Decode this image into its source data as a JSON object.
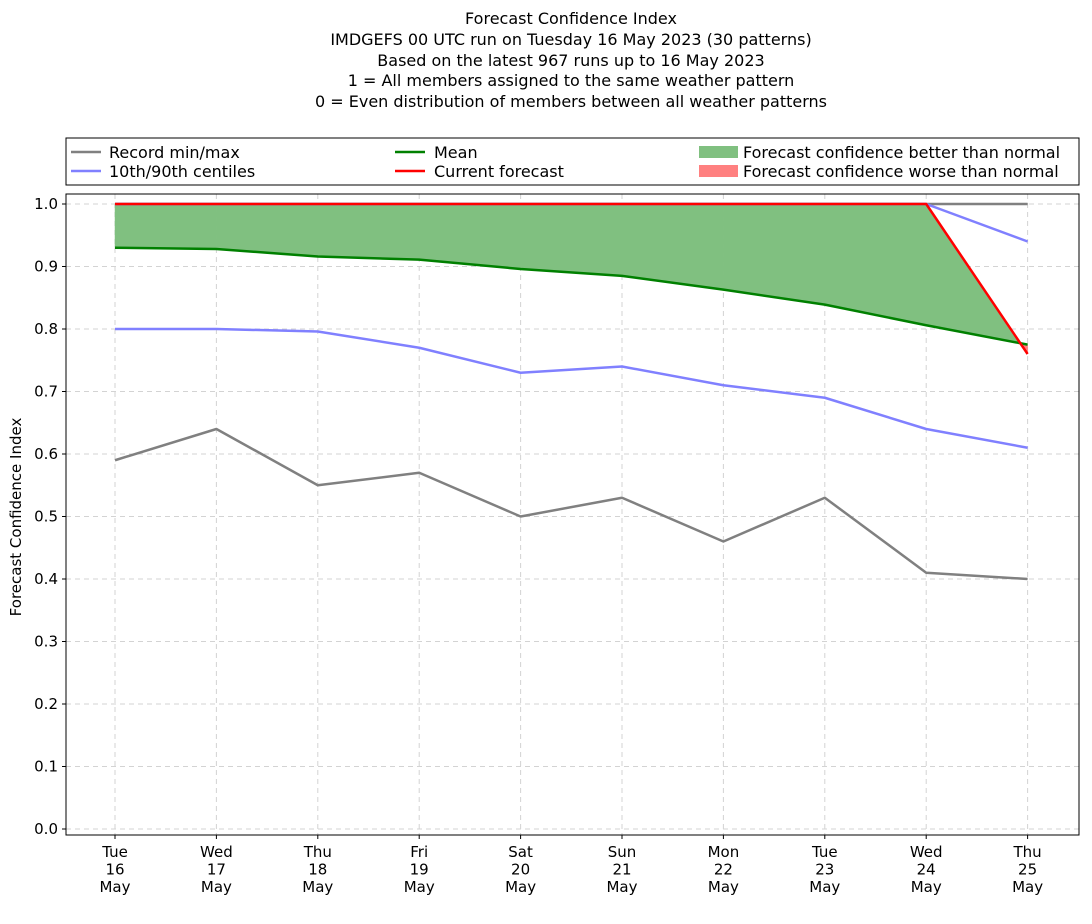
{
  "title_lines": [
    "Forecast Confidence Index",
    "IMDGEFS 00 UTC run on Tuesday 16 May 2023 (30 patterns)",
    "Based on the latest 967 runs up to 16 May 2023",
    "1 = All members assigned to the same weather pattern",
    "0 = Even distribution of members between all weather patterns"
  ],
  "legend": {
    "record": "Record min/max",
    "centiles": "10th/90th centiles",
    "mean": "Mean",
    "current": "Current forecast",
    "better": "Forecast confidence better than normal",
    "worse": "Forecast confidence worse than normal"
  },
  "colors": {
    "record": "#808080",
    "centiles": "#8080ff",
    "mean": "#008000",
    "current": "#ff0000",
    "better_fill": "#80c080",
    "worse_fill": "#ff8080"
  },
  "chart_data": {
    "type": "line",
    "ylabel": "Forecast Confidence Index",
    "ylim": [
      0,
      1
    ],
    "yticks": [
      "0.0",
      "0.1",
      "0.2",
      "0.3",
      "0.4",
      "0.5",
      "0.6",
      "0.7",
      "0.8",
      "0.9",
      "1.0"
    ],
    "grid": true,
    "legend_position": "top",
    "categories": [
      [
        "Tue",
        "16",
        "May"
      ],
      [
        "Wed",
        "17",
        "May"
      ],
      [
        "Thu",
        "18",
        "May"
      ],
      [
        "Fri",
        "19",
        "May"
      ],
      [
        "Sat",
        "20",
        "May"
      ],
      [
        "Sun",
        "21",
        "May"
      ],
      [
        "Mon",
        "22",
        "May"
      ],
      [
        "Tue",
        "23",
        "May"
      ],
      [
        "Wed",
        "24",
        "May"
      ],
      [
        "Thu",
        "25",
        "May"
      ]
    ],
    "series": [
      {
        "name": "Record min",
        "key": "record",
        "values": [
          0.59,
          0.64,
          0.55,
          0.57,
          0.5,
          0.53,
          0.46,
          0.53,
          0.41,
          0.4
        ]
      },
      {
        "name": "Record max",
        "key": "record",
        "values": [
          1.0,
          1.0,
          1.0,
          1.0,
          1.0,
          1.0,
          1.0,
          1.0,
          1.0,
          1.0
        ]
      },
      {
        "name": "10th centile",
        "key": "centiles",
        "values": [
          0.8,
          0.8,
          0.796,
          0.77,
          0.73,
          0.74,
          0.71,
          0.69,
          0.64,
          0.61
        ]
      },
      {
        "name": "90th centile",
        "key": "centiles",
        "values": [
          1.0,
          1.0,
          1.0,
          1.0,
          1.0,
          1.0,
          1.0,
          1.0,
          1.0,
          0.94
        ]
      },
      {
        "name": "Mean",
        "key": "mean",
        "values": [
          0.93,
          0.928,
          0.916,
          0.911,
          0.896,
          0.885,
          0.863,
          0.839,
          0.806,
          0.775
        ]
      },
      {
        "name": "Current forecast",
        "key": "current",
        "values": [
          1.0,
          1.0,
          1.0,
          1.0,
          1.0,
          1.0,
          1.0,
          1.0,
          1.0,
          0.76
        ]
      }
    ]
  }
}
